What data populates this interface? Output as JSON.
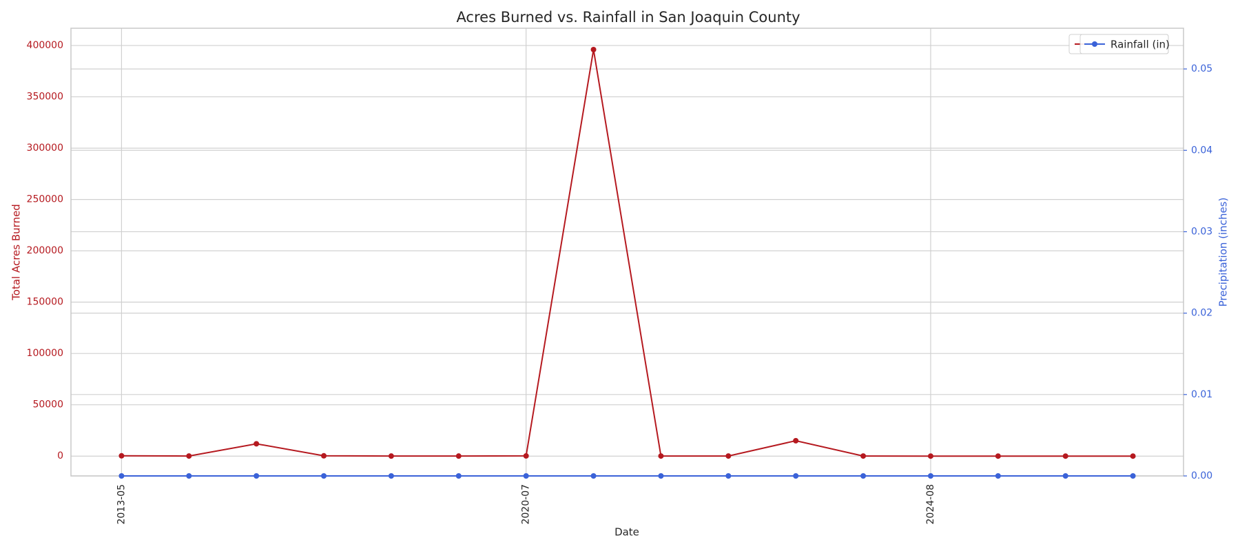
{
  "chart_data": {
    "type": "line",
    "title": "Acres Burned vs. Rainfall in San Joaquin County",
    "x_label": "Date",
    "y_label": "Total Acres Burned",
    "y2_label": "Precipitation (inches)",
    "categories": [
      "2013-05",
      null,
      null,
      null,
      null,
      null,
      "2020-07",
      null,
      null,
      null,
      null,
      null,
      "2024-08",
      null,
      null,
      null
    ],
    "series": [
      {
        "color": "#b5191f",
        "values": [
          300,
          100,
          12000,
          300,
          50,
          50,
          200,
          396000,
          100,
          100,
          15000,
          100,
          0,
          0,
          0,
          0
        ]
      },
      {
        "name": "Rainfall (in)",
        "color": "#3a62d8",
        "axis": "y2",
        "values": [
          0,
          0,
          0,
          0,
          0,
          0,
          0,
          0,
          0,
          0,
          0,
          0,
          0,
          0,
          0,
          0
        ]
      }
    ],
    "ylim": [
      -19300,
      416800
    ],
    "yticks": [
      0,
      50000,
      100000,
      150000,
      200000,
      250000,
      300000,
      350000,
      400000
    ],
    "y2lim": [
      0,
      0.055
    ],
    "y2ticks": [
      {
        "value": 0,
        "label": "0.00"
      },
      {
        "value": 0.01,
        "label": "0.01"
      },
      {
        "value": 0.02,
        "label": "0.02"
      },
      {
        "value": 0.03,
        "label": "0.03"
      },
      {
        "value": 0.04,
        "label": "0.04"
      },
      {
        "value": 0.05,
        "label": "0.05"
      }
    ],
    "grid": true,
    "legend": "upper right"
  }
}
